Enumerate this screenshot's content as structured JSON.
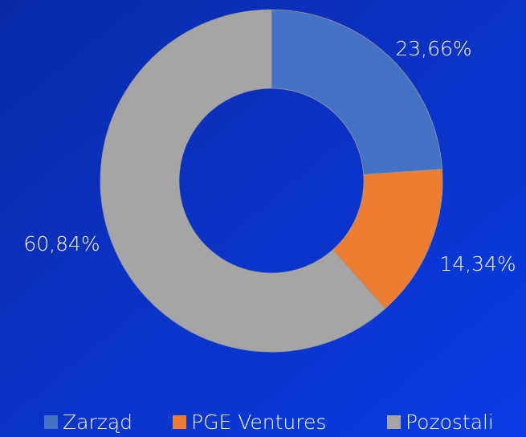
{
  "chart_data": {
    "type": "donut",
    "categories": [
      "Zarząd",
      "PGE Ventures",
      "Pozostali"
    ],
    "values": [
      23.66,
      14.34,
      60.84
    ],
    "value_labels": [
      "23,66%",
      "14,34%",
      "60,84%"
    ],
    "colors": [
      "#4472c4",
      "#ed7d31",
      "#a5a5a5"
    ],
    "legend": "bottom"
  }
}
